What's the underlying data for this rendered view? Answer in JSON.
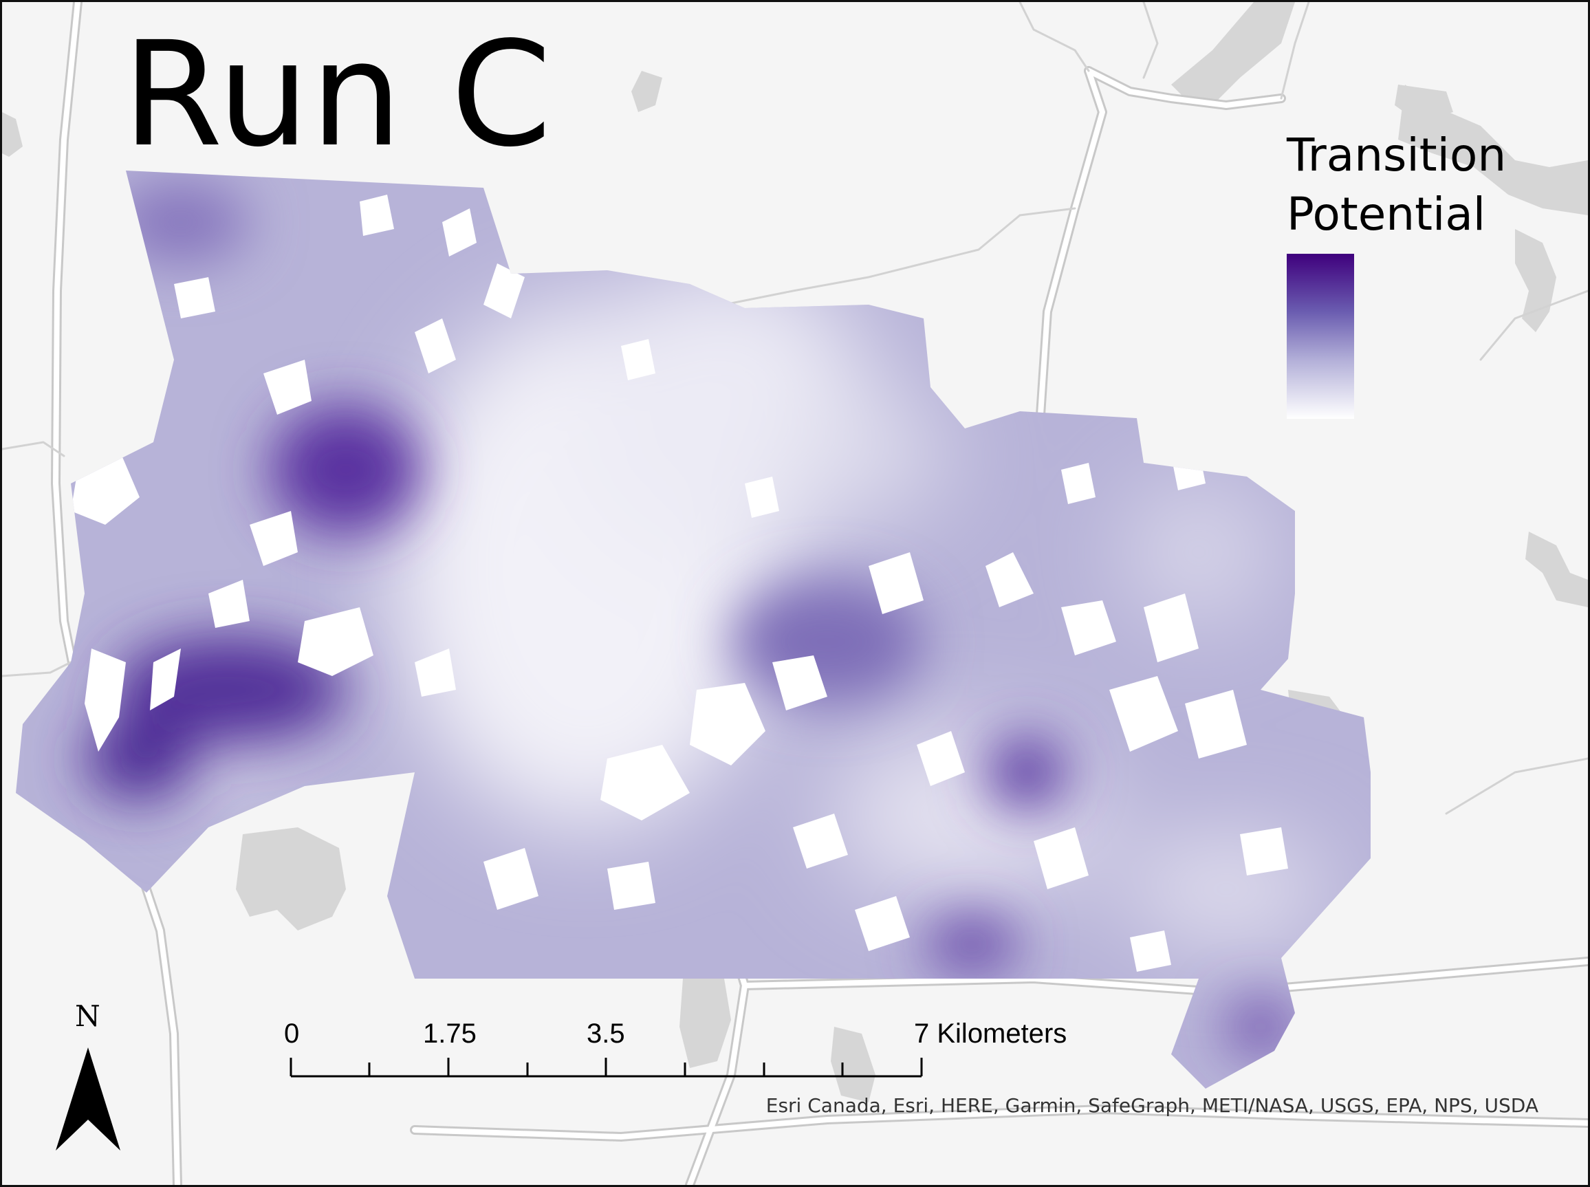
{
  "title": "Run C",
  "legend": {
    "title_line1": "Transition",
    "title_line2": "Potential",
    "ramp_colors": [
      "#3f007d",
      "#6a5cb0",
      "#b4b1d9",
      "#ffffff"
    ]
  },
  "north_arrow": {
    "label": "N",
    "icon": "north-arrow-icon"
  },
  "scale_bar": {
    "labels": [
      "0",
      "1.75",
      "3.5",
      "7 Kilometers"
    ]
  },
  "attribution": "Esri Canada, Esri, HERE, Garmin, SafeGraph, METI/NASA, USGS, EPA, NPS, USDA",
  "colors": {
    "basemap_background": "#f5f5f5",
    "water": "#d6d6d6",
    "road": "#ffffff",
    "road_casing": "#c8c8c8",
    "raster_base": "#b3afd6",
    "raster_dark": "#4b1e8c",
    "gap": "#ffffff"
  }
}
